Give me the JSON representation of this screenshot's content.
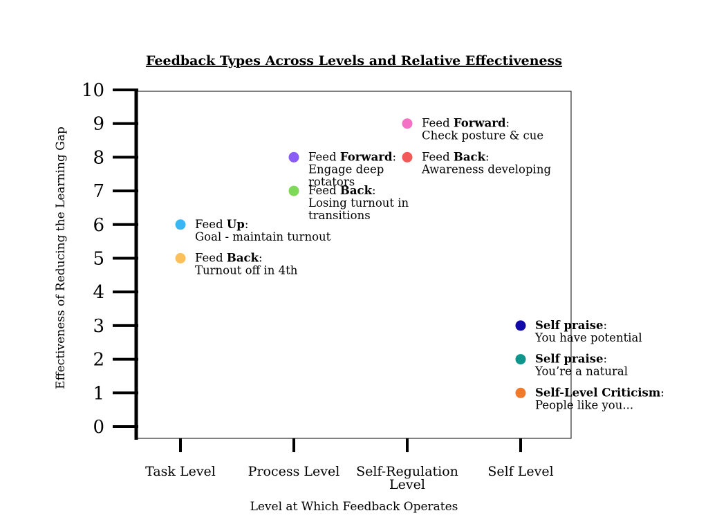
{
  "chart_data": {
    "type": "scatter",
    "title": "Feedback Types Across Levels and Relative Effectiveness",
    "xlabel": "Level at Which Feedback Operates",
    "ylabel": "Effectiveness of Reducing the Learning Gap",
    "categories": [
      "Task Level",
      "Process Level",
      "Self-Regulation Level",
      "Self Level"
    ],
    "category_lines": [
      [
        "Task Level"
      ],
      [
        "Process Level"
      ],
      [
        "Self-Regulation",
        "Level"
      ],
      [
        "Self Level"
      ]
    ],
    "yticks": [
      "0",
      "1",
      "2",
      "3",
      "4",
      "5",
      "6",
      "7",
      "8",
      "9",
      "10"
    ],
    "ylim": [
      0,
      10
    ],
    "grid": false,
    "points": [
      {
        "category": "Task Level",
        "y": 6,
        "color": "#3bb6f5",
        "pre": "Feed ",
        "bold": "Up",
        "post": ":",
        "desc": [
          "Goal - maintain turnout"
        ]
      },
      {
        "category": "Task Level",
        "y": 5,
        "color": "#fbbf5c",
        "pre": "Feed ",
        "bold": "Back",
        "post": ":",
        "desc": [
          "Turnout off in 4th"
        ]
      },
      {
        "category": "Process Level",
        "y": 8,
        "color": "#8b5cf6",
        "pre": "Feed ",
        "bold": "Forward",
        "post": ":",
        "desc": [
          "Engage deep",
          "rotators"
        ]
      },
      {
        "category": "Process Level",
        "y": 7,
        "color": "#7ed957",
        "pre": "Feed ",
        "bold": "Back",
        "post": ":",
        "desc": [
          "Losing turnout in",
          "transitions"
        ]
      },
      {
        "category": "Self-Regulation Level",
        "y": 9,
        "color": "#f472c6",
        "pre": "Feed ",
        "bold": "Forward",
        "post": ":",
        "desc": [
          "Check posture & cue"
        ]
      },
      {
        "category": "Self-Regulation Level",
        "y": 8,
        "color": "#f25a5a",
        "pre": "Feed ",
        "bold": "Back",
        "post": ":",
        "desc": [
          "Awareness developing"
        ]
      },
      {
        "category": "Self Level",
        "y": 3,
        "color": "#120aa8",
        "pre": "",
        "bold": "Self praise",
        "post": ":",
        "desc": [
          "You have potential"
        ]
      },
      {
        "category": "Self Level",
        "y": 2,
        "color": "#0f968c",
        "pre": "",
        "bold": "Self praise",
        "post": ":",
        "desc": [
          "You’re a natural"
        ]
      },
      {
        "category": "Self Level",
        "y": 1,
        "color": "#f2782a",
        "pre": "",
        "bold": "Self-Level Criticism",
        "post": ":",
        "desc": [
          "People like you..."
        ]
      }
    ]
  }
}
